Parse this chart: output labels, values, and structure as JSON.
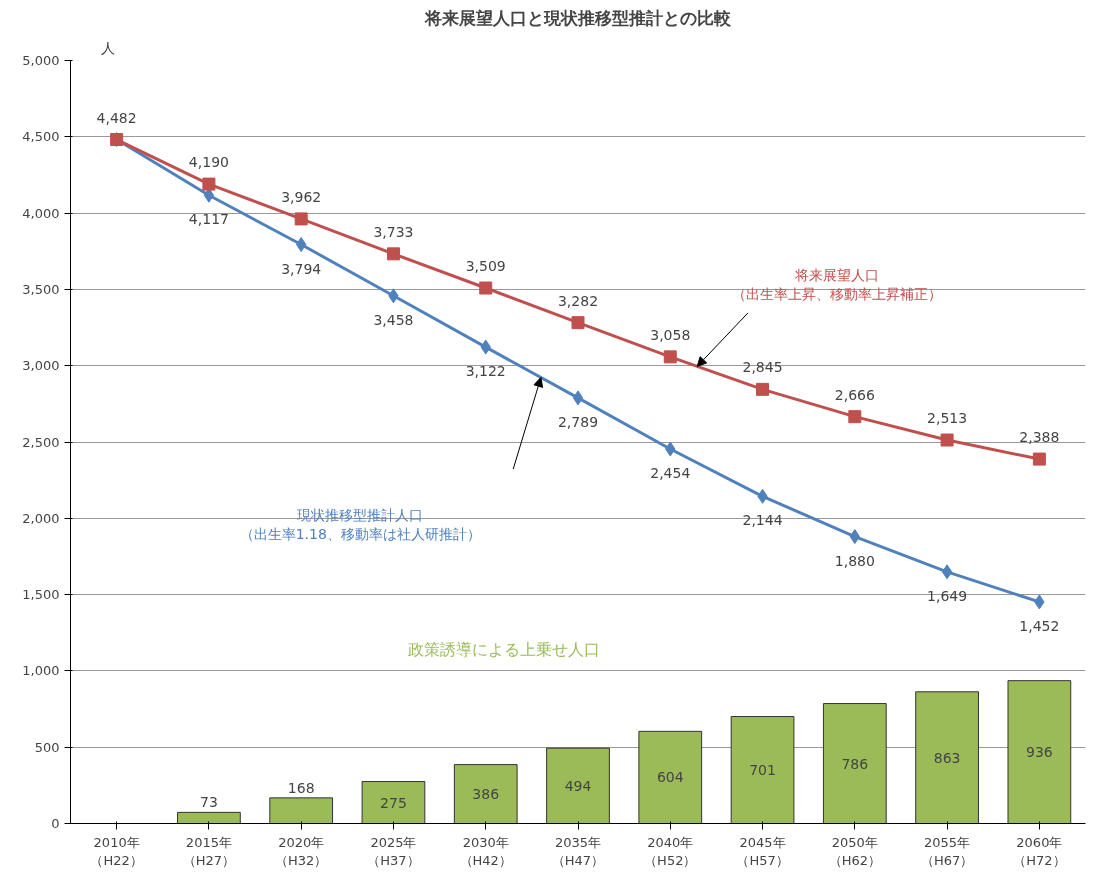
{
  "chart_data": {
    "type": "bar",
    "title": "将来展望人口と現状推移型推計との比較",
    "ylabel": "人",
    "categories": [
      "2010年（H22）",
      "2015年（H27）",
      "2020年（H32）",
      "2025年（H37）",
      "2030年（H42）",
      "2035年（H47）",
      "2040年（H52）",
      "2045年（H57）",
      "2050年（H62）",
      "2055年（H67）",
      "2060年（H72）"
    ],
    "series": [
      {
        "name": "政策誘導による上乗せ人口",
        "color": "#9bbb59",
        "values": [
          null,
          73,
          168,
          275,
          386,
          494,
          604,
          701,
          786,
          863,
          936
        ],
        "value_labels": [
          null,
          "73",
          "168",
          "275",
          "386",
          "494",
          "604",
          "701",
          "786",
          "863",
          "936"
        ]
      },
      {
        "name": "現状推移型推計人口（出生率1.18、移動率は社人研推計）",
        "type": "line",
        "marker": "diamond",
        "color": "#4f81bd",
        "values": [
          4482,
          4117,
          3794,
          3458,
          3122,
          2789,
          2454,
          2144,
          1880,
          1649,
          1452
        ],
        "value_labels": [
          null,
          "4,117",
          "3,794",
          "3,458",
          "3,122",
          "2,789",
          "2,454",
          "2,144",
          "1,880",
          "1,649",
          "1,452"
        ]
      },
      {
        "name": "将来展望人口（出生率上昇、移動率上昇補正）",
        "type": "line",
        "marker": "square",
        "color": "#c0504d",
        "values": [
          4482,
          4190,
          3962,
          3733,
          3509,
          3282,
          3058,
          2845,
          2666,
          2513,
          2388
        ],
        "value_labels": [
          "4,482",
          "4,190",
          "3,962",
          "3,733",
          "3,509",
          "3,282",
          "3,058",
          "2,845",
          "2,666",
          "2,513",
          "2,388"
        ]
      }
    ],
    "ylim": [
      0,
      5000
    ],
    "yticks": [
      {
        "value": 0,
        "label": "0"
      },
      {
        "value": 500,
        "label": "500"
      },
      {
        "value": 1000,
        "label": "1,000"
      },
      {
        "value": 1500,
        "label": "1,500"
      },
      {
        "value": 2000,
        "label": "2,000"
      },
      {
        "value": 2500,
        "label": "2,500"
      },
      {
        "value": 3000,
        "label": "3,000"
      },
      {
        "value": 3500,
        "label": "3,500"
      },
      {
        "value": 4000,
        "label": "4,000"
      },
      {
        "value": 4500,
        "label": "4,500"
      },
      {
        "value": 5000,
        "label": "5,000"
      }
    ],
    "grid": "y",
    "line_style": "solid"
  }
}
